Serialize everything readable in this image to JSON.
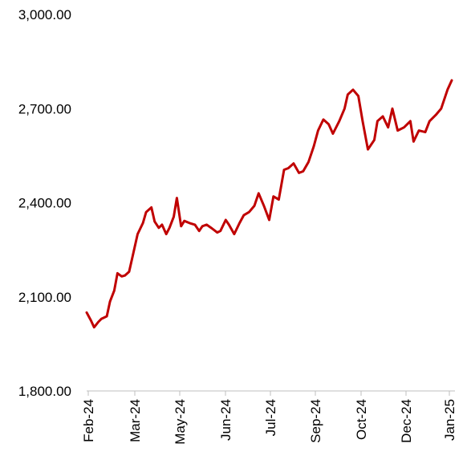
{
  "chart_data": {
    "type": "line",
    "title": "",
    "xlabel": "",
    "ylabel": "",
    "ylim": [
      1800,
      3000
    ],
    "y_ticks": [
      "3,000.00",
      "2,700.00",
      "2,400.00",
      "2,100.00",
      "1,800.00"
    ],
    "x_ticks": [
      "Feb-24",
      "Mar-24",
      "May-24",
      "Jun-24",
      "Jul-24",
      "Sep-24",
      "Oct-24",
      "Dec-24",
      "Jan-25"
    ],
    "grid": false,
    "legend": "none",
    "series": [
      {
        "color": "#c00000",
        "x": [
          "2024-02-01",
          "2024-02-05",
          "2024-02-08",
          "2024-02-12",
          "2024-02-15",
          "2024-02-20",
          "2024-02-23",
          "2024-02-27",
          "2024-03-01",
          "2024-03-05",
          "2024-03-08",
          "2024-03-12",
          "2024-03-15",
          "2024-03-20",
          "2024-03-25",
          "2024-03-28",
          "2024-04-02",
          "2024-04-05",
          "2024-04-09",
          "2024-04-12",
          "2024-04-16",
          "2024-04-19",
          "2024-04-23",
          "2024-04-26",
          "2024-04-30",
          "2024-05-03",
          "2024-05-08",
          "2024-05-13",
          "2024-05-17",
          "2024-05-20",
          "2024-05-24",
          "2024-05-29",
          "2024-06-03",
          "2024-06-06",
          "2024-06-11",
          "2024-06-14",
          "2024-06-19",
          "2024-06-24",
          "2024-06-28",
          "2024-07-03",
          "2024-07-08",
          "2024-07-12",
          "2024-07-17",
          "2024-07-22",
          "2024-07-26",
          "2024-07-31",
          "2024-08-05",
          "2024-08-09",
          "2024-08-14",
          "2024-08-19",
          "2024-08-23",
          "2024-08-28",
          "2024-09-02",
          "2024-09-06",
          "2024-09-11",
          "2024-09-16",
          "2024-09-20",
          "2024-09-26",
          "2024-10-01",
          "2024-10-04",
          "2024-10-09",
          "2024-10-14",
          "2024-10-18",
          "2024-10-23",
          "2024-10-29",
          "2024-11-01",
          "2024-11-06",
          "2024-11-11",
          "2024-11-15",
          "2024-11-20",
          "2024-11-26",
          "2024-12-02",
          "2024-12-05",
          "2024-12-10",
          "2024-12-16",
          "2024-12-20",
          "2024-12-26",
          "2024-12-31",
          "2025-01-06",
          "2025-01-10"
        ],
        "values": [
          2050,
          2025,
          2003,
          2020,
          2030,
          2038,
          2085,
          2120,
          2175,
          2165,
          2168,
          2180,
          2225,
          2300,
          2335,
          2370,
          2385,
          2340,
          2320,
          2330,
          2300,
          2320,
          2355,
          2415,
          2325,
          2342,
          2335,
          2330,
          2310,
          2325,
          2330,
          2318,
          2305,
          2310,
          2345,
          2330,
          2300,
          2335,
          2360,
          2370,
          2390,
          2430,
          2390,
          2345,
          2420,
          2410,
          2505,
          2510,
          2525,
          2495,
          2500,
          2530,
          2580,
          2630,
          2665,
          2650,
          2620,
          2660,
          2700,
          2745,
          2760,
          2740,
          2660,
          2570,
          2600,
          2660,
          2675,
          2640,
          2700,
          2630,
          2640,
          2660,
          2595,
          2630,
          2625,
          2660,
          2680,
          2700,
          2760,
          2790
        ]
      }
    ]
  }
}
